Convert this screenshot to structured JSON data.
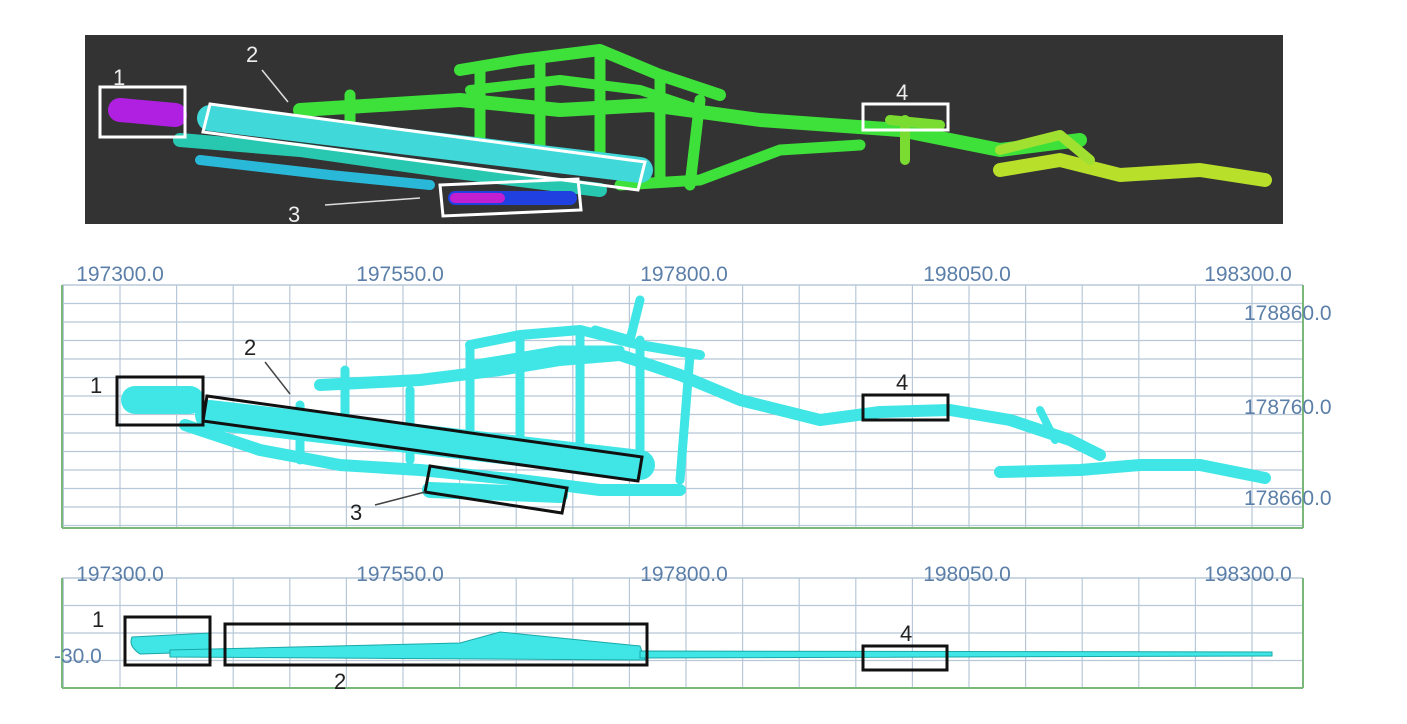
{
  "point_cloud_panel": {
    "background": "#333333",
    "box_labels": [
      "1",
      "2",
      "3",
      "4"
    ]
  },
  "plan_view": {
    "x_ticks": [
      "197300.0",
      "197550.0",
      "197800.0",
      "198050.0",
      "198300.0"
    ],
    "y_ticks": [
      "178860.0",
      "178760.0",
      "178660.0"
    ],
    "box_labels": [
      "1",
      "2",
      "3",
      "4"
    ],
    "cave_color": "#40e6e6",
    "grid_color": "#b8c8d8",
    "axis_color": "#7ab87a"
  },
  "section_view": {
    "x_ticks": [
      "197300.0",
      "197550.0",
      "197800.0",
      "198050.0",
      "198300.0"
    ],
    "y_ticks": [
      "-30.0"
    ],
    "box_labels": [
      "1",
      "2",
      "4"
    ]
  }
}
